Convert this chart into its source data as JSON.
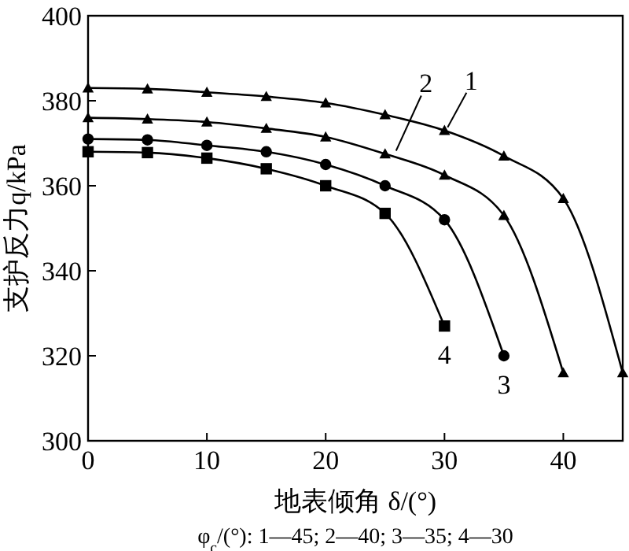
{
  "chart_data": {
    "type": "line",
    "xlabel": "地表倾角 δ/(°)",
    "ylabel": "支护反力q/kPa",
    "xlim": [
      0,
      45
    ],
    "xticks": [
      0,
      10,
      20,
      30,
      40
    ],
    "ylim": [
      300,
      400
    ],
    "yticks": [
      300,
      320,
      340,
      360,
      380,
      400
    ],
    "grid": false,
    "series": [
      {
        "name": "1",
        "color": "#000000",
        "marker": "triangle",
        "x": [
          0,
          5,
          10,
          15,
          20,
          25,
          30,
          35,
          40,
          45
        ],
        "values": [
          383,
          382.8,
          382,
          381,
          379.5,
          376.7,
          373,
          367,
          357,
          316
        ]
      },
      {
        "name": "2",
        "color": "#000000",
        "marker": "triangle",
        "x": [
          0,
          5,
          10,
          15,
          20,
          25,
          30,
          35,
          40
        ],
        "values": [
          376,
          375.7,
          375,
          373.5,
          371.5,
          367.5,
          362.5,
          353,
          316
        ]
      },
      {
        "name": "3",
        "color": "#000000",
        "marker": "circle",
        "x": [
          0,
          5,
          10,
          15,
          20,
          25,
          30,
          35
        ],
        "values": [
          371,
          370.8,
          369.5,
          368,
          365,
          360,
          352,
          320
        ]
      },
      {
        "name": "4",
        "color": "#000000",
        "marker": "square",
        "x": [
          0,
          5,
          10,
          15,
          20,
          25,
          30
        ],
        "values": [
          368,
          367.8,
          366.5,
          364,
          360,
          353.5,
          327
        ]
      }
    ],
    "annotations": [
      "φ$_{c}$/(°): 1—45; 2—40; 3—35; 4—30"
    ]
  }
}
